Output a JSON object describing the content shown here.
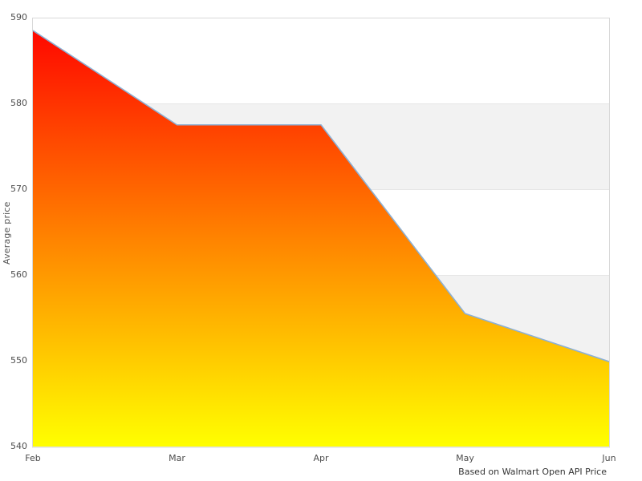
{
  "chart_data": {
    "type": "area",
    "categories": [
      "Feb",
      "Mar",
      "Apr",
      "May",
      "Jun"
    ],
    "values": [
      588.5,
      577.5,
      577.5,
      555.5,
      549.9
    ],
    "series_name": "Average price",
    "title": "",
    "xlabel": "",
    "ylabel": "Average price",
    "caption": "Based on Walmart Open API Price",
    "ylim": [
      540,
      590
    ],
    "yticks": [
      540,
      550,
      560,
      570,
      580,
      590
    ],
    "alternate_bands": [
      [
        550,
        560
      ],
      [
        570,
        580
      ]
    ],
    "grid": "horizontal",
    "legend": "none",
    "colors": {
      "line": "#8cb0d4",
      "area_gradient_top": "#ff0000",
      "area_gradient_bottom": "#ffff00",
      "band": "#f2f2f2",
      "gridline": "#e6e6e6",
      "border": "#d9d9d9",
      "tick_label": "#4d4d4d",
      "axis_title": "#555555",
      "caption": "#333333",
      "background": "#ffffff"
    }
  }
}
